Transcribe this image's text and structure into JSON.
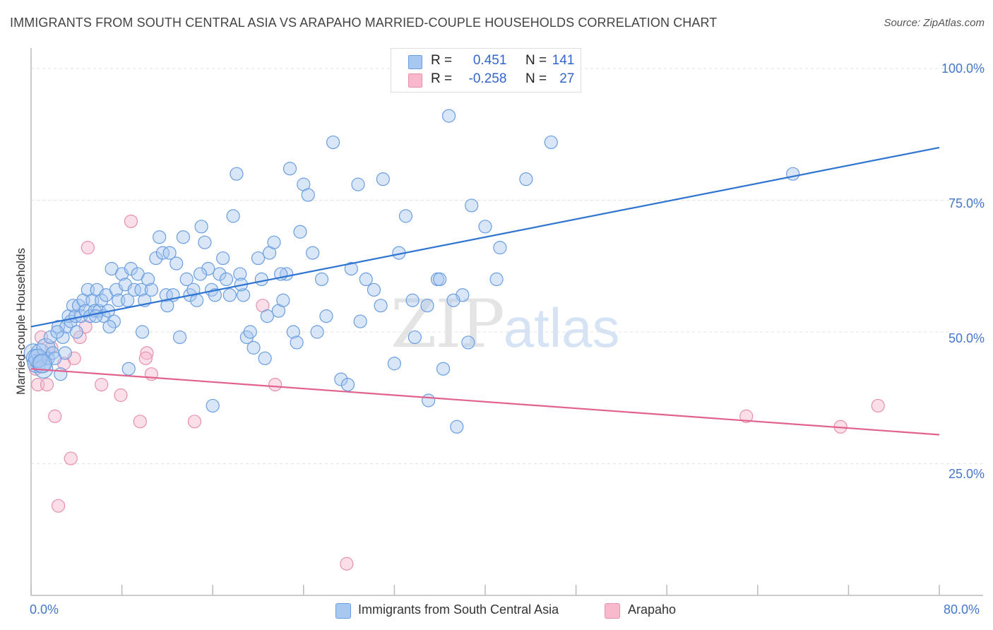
{
  "header": {
    "title": "IMMIGRANTS FROM SOUTH CENTRAL ASIA VS ARAPAHO MARRIED-COUPLE HOUSEHOLDS CORRELATION CHART",
    "source": "Source: ZipAtlas.com"
  },
  "watermark": {
    "zip": "ZIP",
    "atlas": "atlas"
  },
  "legend": {
    "rows": [
      {
        "r_label": "R =",
        "r_value": "0.451",
        "n_label": "N =",
        "n_value": "141",
        "color": "#a9c8f0"
      },
      {
        "r_label": "R =",
        "r_value": "-0.258",
        "n_label": "N =",
        "n_value": "27",
        "color": "#f7b9cb"
      }
    ]
  },
  "chart_data": {
    "type": "scatter",
    "title": "IMMIGRANTS FROM SOUTH CENTRAL ASIA VS ARAPAHO MARRIED-COUPLE HOUSEHOLDS CORRELATION CHART",
    "xlabel": "",
    "ylabel": "Married-couple Households",
    "xlim": [
      0,
      80
    ],
    "ylim": [
      0,
      105
    ],
    "x_tick_labels": [
      "0.0%",
      "80.0%"
    ],
    "y_tick_labels": [
      "25.0%",
      "50.0%",
      "75.0%",
      "100.0%"
    ],
    "y_ticks": [
      25,
      50,
      75,
      100
    ],
    "grid": true,
    "legend_position": "top-center",
    "series": [
      {
        "name": "Immigrants from South Central Asia",
        "color": "#6a9ee0",
        "fill": "#a9c8f0",
        "trend": {
          "x": [
            0,
            80
          ],
          "y": [
            51,
            85
          ]
        },
        "points": [
          [
            0.2,
            46
          ],
          [
            0.4,
            45
          ],
          [
            0.5,
            44
          ],
          [
            0.8,
            46
          ],
          [
            0.9,
            44
          ],
          [
            1.1,
            43
          ],
          [
            1.3,
            47
          ],
          [
            1.5,
            45
          ],
          [
            1.7,
            49
          ],
          [
            1.9,
            46
          ],
          [
            2.1,
            45
          ],
          [
            2.4,
            51
          ],
          [
            2.6,
            42
          ],
          [
            2.8,
            49
          ],
          [
            3.1,
            51
          ],
          [
            3.3,
            53
          ],
          [
            3.5,
            52
          ],
          [
            3.7,
            55
          ],
          [
            3.9,
            53
          ],
          [
            4.2,
            55
          ],
          [
            4.4,
            53
          ],
          [
            4.6,
            56
          ],
          [
            4.8,
            54
          ],
          [
            5.0,
            58
          ],
          [
            5.2,
            53
          ],
          [
            5.4,
            56
          ],
          [
            5.6,
            54
          ],
          [
            5.8,
            58
          ],
          [
            6.0,
            54
          ],
          [
            6.2,
            56
          ],
          [
            6.4,
            53
          ],
          [
            6.6,
            57
          ],
          [
            6.8,
            54
          ],
          [
            7.1,
            62
          ],
          [
            7.3,
            52
          ],
          [
            7.5,
            58
          ],
          [
            7.7,
            56
          ],
          [
            8.0,
            61
          ],
          [
            8.3,
            59
          ],
          [
            8.5,
            56
          ],
          [
            8.8,
            62
          ],
          [
            9.1,
            58
          ],
          [
            9.4,
            61
          ],
          [
            9.7,
            58
          ],
          [
            10.0,
            56
          ],
          [
            10.3,
            60
          ],
          [
            10.6,
            58
          ],
          [
            11.0,
            64
          ],
          [
            11.3,
            68
          ],
          [
            11.6,
            65
          ],
          [
            11.9,
            57
          ],
          [
            12.2,
            65
          ],
          [
            12.5,
            57
          ],
          [
            12.8,
            63
          ],
          [
            13.1,
            49
          ],
          [
            13.4,
            68
          ],
          [
            13.7,
            60
          ],
          [
            14.0,
            57
          ],
          [
            14.3,
            58
          ],
          [
            14.6,
            56
          ],
          [
            15.0,
            70
          ],
          [
            15.3,
            67
          ],
          [
            15.6,
            62
          ],
          [
            15.9,
            58
          ],
          [
            16.2,
            57
          ],
          [
            16.6,
            61
          ],
          [
            16.9,
            64
          ],
          [
            17.2,
            60
          ],
          [
            17.5,
            57
          ],
          [
            17.8,
            72
          ],
          [
            18.1,
            80
          ],
          [
            18.4,
            61
          ],
          [
            18.7,
            57
          ],
          [
            19.0,
            49
          ],
          [
            19.3,
            50
          ],
          [
            19.6,
            47
          ],
          [
            20.0,
            64
          ],
          [
            20.3,
            60
          ],
          [
            20.6,
            45
          ],
          [
            21.0,
            65
          ],
          [
            21.4,
            67
          ],
          [
            21.8,
            54
          ],
          [
            22.2,
            56
          ],
          [
            22.5,
            61
          ],
          [
            22.8,
            81
          ],
          [
            23.1,
            50
          ],
          [
            23.4,
            48
          ],
          [
            23.7,
            69
          ],
          [
            24.0,
            78
          ],
          [
            24.4,
            76
          ],
          [
            24.8,
            65
          ],
          [
            25.2,
            50
          ],
          [
            26.0,
            53
          ],
          [
            26.6,
            86
          ],
          [
            27.3,
            41
          ],
          [
            28.2,
            62
          ],
          [
            28.8,
            78
          ],
          [
            29.5,
            60
          ],
          [
            30.2,
            58
          ],
          [
            31.0,
            79
          ],
          [
            32.4,
            65
          ],
          [
            33.0,
            72
          ],
          [
            33.8,
            49
          ],
          [
            35.0,
            37
          ],
          [
            35.8,
            60
          ],
          [
            36.3,
            43
          ],
          [
            36.8,
            91
          ],
          [
            37.5,
            32
          ],
          [
            38.0,
            57
          ],
          [
            38.8,
            74
          ],
          [
            40.0,
            70
          ],
          [
            41.3,
            66
          ],
          [
            43.6,
            79
          ],
          [
            45.8,
            86
          ],
          [
            67.1,
            80
          ],
          [
            0.6,
            45
          ],
          [
            1.0,
            44
          ],
          [
            2.3,
            50
          ],
          [
            3.0,
            46
          ],
          [
            4.0,
            50
          ],
          [
            5.7,
            53
          ],
          [
            6.9,
            51
          ],
          [
            8.6,
            43
          ],
          [
            9.8,
            50
          ],
          [
            12.0,
            55
          ],
          [
            14.9,
            61
          ],
          [
            16.0,
            36
          ],
          [
            18.5,
            59
          ],
          [
            20.8,
            53
          ],
          [
            22.0,
            61
          ],
          [
            25.6,
            60
          ],
          [
            27.9,
            40
          ],
          [
            29.0,
            52
          ],
          [
            30.8,
            55
          ],
          [
            32.0,
            44
          ],
          [
            33.6,
            56
          ],
          [
            34.9,
            55
          ],
          [
            36.0,
            60
          ],
          [
            37.2,
            56
          ],
          [
            38.5,
            48
          ],
          [
            41.0,
            60
          ]
        ]
      },
      {
        "name": "Arapaho",
        "color": "#e890ab",
        "fill": "#f7b9cb",
        "trend": {
          "x": [
            0,
            80
          ],
          "y": [
            43,
            30.5
          ]
        },
        "points": [
          [
            0.4,
            43
          ],
          [
            0.6,
            40
          ],
          [
            0.9,
            49
          ],
          [
            1.4,
            40
          ],
          [
            1.8,
            47
          ],
          [
            2.1,
            34
          ],
          [
            2.4,
            17
          ],
          [
            2.9,
            44
          ],
          [
            3.5,
            26
          ],
          [
            3.8,
            45
          ],
          [
            4.3,
            49
          ],
          [
            4.8,
            51
          ],
          [
            5.0,
            66
          ],
          [
            6.2,
            40
          ],
          [
            7.9,
            38
          ],
          [
            8.8,
            71
          ],
          [
            9.6,
            33
          ],
          [
            10.2,
            46
          ],
          [
            10.6,
            42
          ],
          [
            14.4,
            33
          ],
          [
            20.4,
            55
          ],
          [
            21.5,
            40
          ],
          [
            27.8,
            6
          ],
          [
            63.0,
            34
          ],
          [
            71.3,
            32
          ],
          [
            74.6,
            36
          ],
          [
            10.1,
            45
          ]
        ]
      }
    ]
  },
  "bottom_legend": {
    "items": [
      {
        "label": "Immigrants from South Central Asia",
        "color": "#a9c8f0"
      },
      {
        "label": "Arapaho",
        "color": "#f7b9cb"
      }
    ]
  }
}
